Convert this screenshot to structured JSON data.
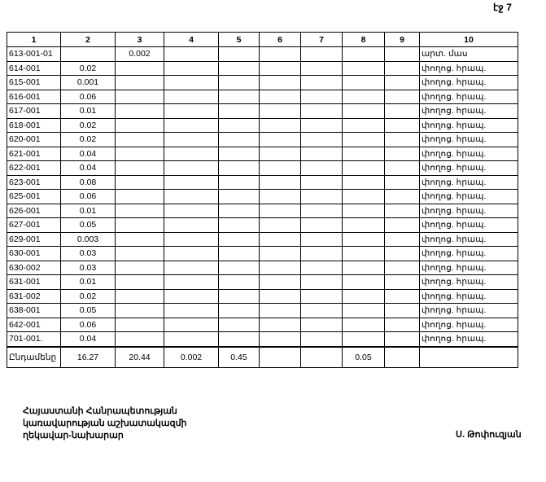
{
  "page_number": "էջ 7",
  "table": {
    "headers": [
      "1",
      "2",
      "3",
      "4",
      "5",
      "6",
      "7",
      "8",
      "9",
      "10"
    ],
    "rows": [
      [
        "613-001-01",
        "",
        "0.002",
        "",
        "",
        "",
        "",
        "",
        "",
        "արտ. մաս"
      ],
      [
        "614-001",
        "0.02",
        "",
        "",
        "",
        "",
        "",
        "",
        "",
        "փողոց. հրապ."
      ],
      [
        "615-001",
        "0.001",
        "",
        "",
        "",
        "",
        "",
        "",
        "",
        "փողոց. հրապ."
      ],
      [
        "616-001",
        "0.06",
        "",
        "",
        "",
        "",
        "",
        "",
        "",
        "փողոց. հրապ."
      ],
      [
        "617-001",
        "0.01",
        "",
        "",
        "",
        "",
        "",
        "",
        "",
        "փողոց. հրապ."
      ],
      [
        "618-001",
        "0.02",
        "",
        "",
        "",
        "",
        "",
        "",
        "",
        "փողոց. հրապ."
      ],
      [
        "620-001",
        "0.02",
        "",
        "",
        "",
        "",
        "",
        "",
        "",
        "փողոց. հրապ."
      ],
      [
        "621-001",
        "0.04",
        "",
        "",
        "",
        "",
        "",
        "",
        "",
        "փողոց. հրապ."
      ],
      [
        "622-001",
        "0.04",
        "",
        "",
        "",
        "",
        "",
        "",
        "",
        "փողոց. հրապ."
      ],
      [
        "623-001",
        "0.08",
        "",
        "",
        "",
        "",
        "",
        "",
        "",
        "փողոց. հրապ."
      ],
      [
        "625-001",
        "0.06",
        "",
        "",
        "",
        "",
        "",
        "",
        "",
        "փողոց. հրապ."
      ],
      [
        "626-001",
        "0.01",
        "",
        "",
        "",
        "",
        "",
        "",
        "",
        "փողոց. հրապ."
      ],
      [
        "627-001",
        "0.05",
        "",
        "",
        "",
        "",
        "",
        "",
        "",
        "փողոց. հրապ."
      ],
      [
        "629-001",
        "0.003",
        "",
        "",
        "",
        "",
        "",
        "",
        "",
        "փողոց. հրապ."
      ],
      [
        "630-001",
        "0.03",
        "",
        "",
        "",
        "",
        "",
        "",
        "",
        "փողոց. հրապ."
      ],
      [
        "630-002",
        "0.03",
        "",
        "",
        "",
        "",
        "",
        "",
        "",
        "փողոց. հրապ."
      ],
      [
        "631-001",
        "0.01",
        "",
        "",
        "",
        "",
        "",
        "",
        "",
        "փողոց. հրապ."
      ],
      [
        "631-002",
        "0.02",
        "",
        "",
        "",
        "",
        "",
        "",
        "",
        "փողոց. հրապ."
      ],
      [
        "638-001",
        "0.05",
        "",
        "",
        "",
        "",
        "",
        "",
        "",
        "փողոց. հրապ."
      ],
      [
        "642-001",
        "0.06",
        "",
        "",
        "",
        "",
        "",
        "",
        "",
        "փողոց. հրապ."
      ],
      [
        "701-001.",
        "0.04",
        "",
        "",
        "",
        "",
        "",
        "",
        "",
        "փողոց. հրապ."
      ]
    ],
    "total": [
      "Ընդամենը",
      "16.27",
      "20.44",
      "0.002",
      "0.45",
      "",
      "",
      "0.05",
      "",
      ""
    ]
  },
  "footer": {
    "lines": [
      "Հայաստանի Հանրապետության",
      "կառավարության աշխատակազմի",
      "ղեկավար-նախարար"
    ],
    "signature": "Ս. Թոփուզյան"
  }
}
